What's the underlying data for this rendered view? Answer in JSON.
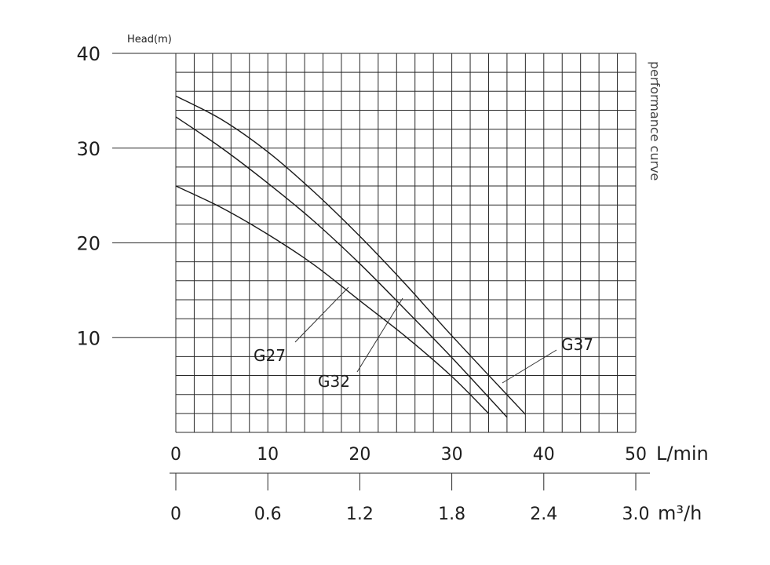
{
  "chart_data": {
    "type": "line",
    "title": "",
    "side_label": "performance curve",
    "ylabel": "Head(m)",
    "ylim": [
      0,
      40
    ],
    "yticks": [
      "10",
      "20",
      "30",
      "40"
    ],
    "xlim": [
      0,
      50
    ],
    "xticks": [
      "0",
      "10",
      "20",
      "30",
      "40",
      "50"
    ],
    "x_unit": "L/min",
    "x2ticks": [
      "0",
      "0.6",
      "1.2",
      "1.8",
      "2.4",
      "3.0"
    ],
    "x2_unit": "m³/h",
    "series": [
      {
        "name": "G27",
        "x": [
          0,
          5,
          10,
          15,
          20,
          25,
          30,
          34
        ],
        "y": [
          26,
          23.7,
          20.9,
          17.7,
          13.9,
          10.1,
          5.9,
          2
        ]
      },
      {
        "name": "G32",
        "x": [
          0,
          5,
          10,
          15,
          20,
          25,
          30,
          36
        ],
        "y": [
          33.3,
          30,
          26.3,
          22.3,
          17.8,
          12.9,
          7.9,
          1.6
        ]
      },
      {
        "name": "G37",
        "x": [
          0,
          5,
          10,
          15,
          20,
          25,
          30,
          38
        ],
        "y": [
          35.5,
          33,
          29.6,
          25.4,
          20.7,
          15.6,
          10.2,
          1.9
        ]
      }
    ]
  }
}
